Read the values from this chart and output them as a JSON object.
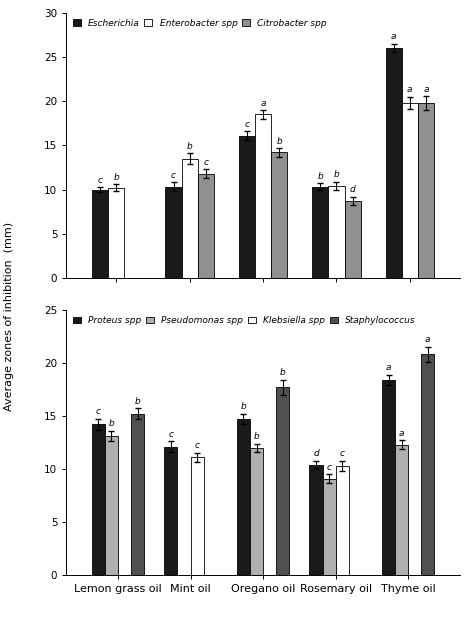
{
  "oils": [
    "Lemon grass oil",
    "Mint oil",
    "Oregano oil",
    "Rosemary oil",
    "Thyme oil"
  ],
  "top_chart": {
    "legend": [
      "Escherichia",
      "Enterobacter spp",
      "Citrobacter spp"
    ],
    "bar_colors": [
      "#1a1a1a",
      "#ffffff",
      "#909090"
    ],
    "bar_edgecolors": [
      "#000000",
      "#000000",
      "#000000"
    ],
    "values": [
      [
        10.0,
        10.3,
        16.1,
        10.3,
        26.0
      ],
      [
        10.2,
        13.5,
        18.5,
        10.4,
        19.8
      ],
      [
        null,
        11.8,
        14.2,
        8.7,
        19.8
      ]
    ],
    "errors": [
      [
        0.3,
        0.5,
        0.5,
        0.4,
        0.5
      ],
      [
        0.4,
        0.6,
        0.5,
        0.5,
        0.7
      ],
      [
        null,
        0.5,
        0.5,
        0.5,
        0.8
      ]
    ],
    "labels": [
      [
        "c",
        "c",
        "c",
        "b",
        "a"
      ],
      [
        "b",
        "b",
        "a",
        "b",
        "a"
      ],
      [
        null,
        "c",
        "b",
        "d",
        "a"
      ]
    ],
    "ylim": [
      0.0,
      30.0
    ],
    "yticks": [
      0.0,
      5.0,
      10.0,
      15.0,
      20.0,
      25.0,
      30.0
    ],
    "ylabel": "Average zones of inhibition  (mm)"
  },
  "bottom_chart": {
    "legend": [
      "Proteus spp",
      "Pseudomonas spp",
      "Klebsiella spp",
      "Staphylococcus"
    ],
    "bar_colors": [
      "#1a1a1a",
      "#b0b0b0",
      "#ffffff",
      "#505050"
    ],
    "bar_edgecolors": [
      "#000000",
      "#000000",
      "#000000",
      "#000000"
    ],
    "values": [
      [
        14.2,
        12.1,
        14.7,
        10.4,
        18.4
      ],
      [
        13.1,
        null,
        12.0,
        9.1,
        12.3
      ],
      [
        null,
        11.1,
        null,
        10.3,
        null
      ],
      [
        15.2,
        null,
        17.7,
        null,
        20.8
      ]
    ],
    "errors": [
      [
        0.5,
        0.5,
        0.5,
        0.4,
        0.5
      ],
      [
        0.5,
        null,
        0.4,
        0.4,
        0.4
      ],
      [
        null,
        0.4,
        null,
        0.5,
        null
      ],
      [
        0.5,
        null,
        0.7,
        null,
        0.7
      ]
    ],
    "labels": [
      [
        "c",
        "c",
        "b",
        "d",
        "a"
      ],
      [
        "b",
        null,
        "b",
        "c",
        "a"
      ],
      [
        null,
        "c",
        null,
        "c",
        null
      ],
      [
        "b",
        null,
        "b",
        null,
        "a"
      ]
    ],
    "ylim": [
      0.0,
      25.0
    ],
    "yticks": [
      0.0,
      5.0,
      10.0,
      15.0,
      20.0,
      25.0
    ],
    "ylabel": ""
  },
  "shared_ylabel": "Average zones of inhibition  (mm)",
  "fig_width": 4.74,
  "fig_height": 6.32,
  "dpi": 100
}
